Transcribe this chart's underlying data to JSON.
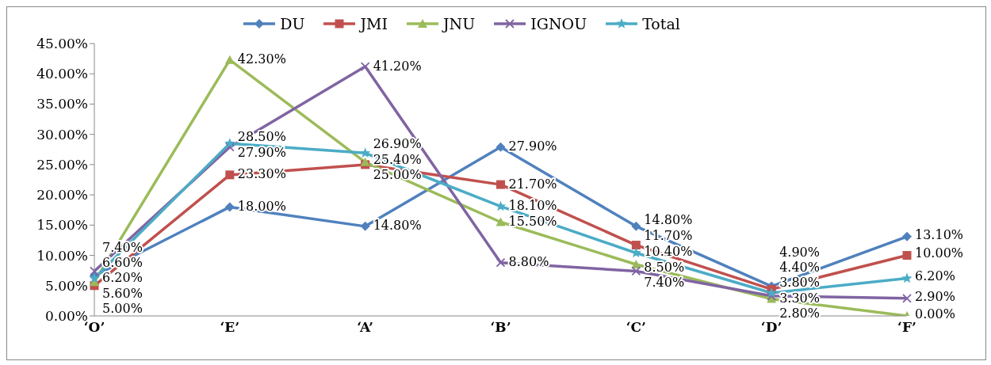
{
  "chart_data": {
    "type": "line",
    "categories": [
      "‘O’",
      "‘E’",
      "‘A’",
      "‘B’",
      "‘C’",
      "‘D’",
      "‘F’"
    ],
    "series": [
      {
        "name": "DU",
        "color": "#4f81bd",
        "marker": "diamond",
        "values": [
          6.6,
          18.0,
          14.8,
          27.9,
          14.8,
          4.9,
          13.1
        ],
        "value_labels": [
          "6.60%",
          "18.00%",
          "14.80%",
          "27.90%",
          "14.80%",
          "4.90%",
          "13.10%"
        ]
      },
      {
        "name": "JMI",
        "color": "#c0504d",
        "marker": "square",
        "values": [
          5.0,
          23.3,
          25.0,
          21.7,
          11.7,
          4.4,
          10.0
        ],
        "value_labels": [
          "5.00%",
          "23.30%",
          "25.00%",
          "21.70%",
          "11.70%",
          "4.40%",
          "10.00%"
        ]
      },
      {
        "name": "JNU",
        "color": "#9bbb59",
        "marker": "triangle",
        "values": [
          5.6,
          42.3,
          25.4,
          15.5,
          8.5,
          2.8,
          0.0
        ],
        "value_labels": [
          "5.60%",
          "42.30%",
          "25.40%",
          "15.50%",
          "8.50%",
          "2.80%",
          "0.00%"
        ]
      },
      {
        "name": "IGNOU",
        "color": "#8064a2",
        "marker": "cross",
        "values": [
          7.4,
          27.9,
          41.2,
          8.8,
          7.4,
          3.3,
          2.9
        ],
        "value_labels": [
          "7.40%",
          "27.90%",
          "41.20%",
          "8.80%",
          "7.40%",
          "3.30%",
          "2.90%"
        ]
      },
      {
        "name": "Total",
        "color": "#4bacc6",
        "marker": "star",
        "values": [
          6.2,
          28.5,
          26.9,
          18.1,
          10.4,
          3.8,
          6.2
        ],
        "value_labels": [
          "6.20%",
          "28.50%",
          "26.90%",
          "18.10%",
          "10.40%",
          "3.80%",
          "6.20%"
        ]
      }
    ],
    "ylim": [
      0,
      45
    ],
    "yticks": [
      {
        "value": 0,
        "label": "0.00%"
      },
      {
        "value": 5,
        "label": "5.00%"
      },
      {
        "value": 10,
        "label": "10.00%"
      },
      {
        "value": 15,
        "label": "15.00%"
      },
      {
        "value": 20,
        "label": "20.00%"
      },
      {
        "value": 25,
        "label": "25.00%"
      },
      {
        "value": 30,
        "label": "30.00%"
      },
      {
        "value": 35,
        "label": "35.00%"
      },
      {
        "value": 40,
        "label": "40.00%"
      },
      {
        "value": 45,
        "label": "45.00%"
      }
    ],
    "grid": false,
    "legend": "top",
    "line_style": "solid"
  }
}
